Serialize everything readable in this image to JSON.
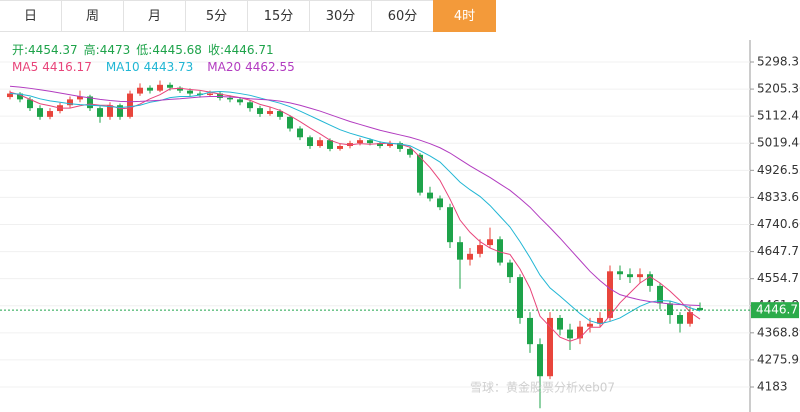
{
  "tabs": [
    "日",
    "周",
    "月",
    "5分",
    "15分",
    "30分",
    "60分",
    "4时"
  ],
  "active_tab": 7,
  "watermark": "雪球：黄金股票分析xeb07",
  "chart_data": {
    "type": "candlestick",
    "header": [
      {
        "label": "开:",
        "field": "open"
      },
      {
        "label": "高:",
        "field": "high"
      },
      {
        "label": "低:",
        "field": "low"
      },
      {
        "label": "收:",
        "field": "close"
      }
    ],
    "up_color": "#e8453c",
    "down_color": "#1ea34a",
    "open": [
      5178,
      5190,
      5170,
      5140,
      5110,
      5130,
      5150,
      5170,
      5180,
      5140,
      5110,
      5150,
      5110,
      5190,
      5210,
      5200,
      5220,
      5210,
      5200,
      5190,
      5185,
      5190,
      5175,
      5170,
      5160,
      5140,
      5120,
      5130,
      5110,
      5070,
      5040,
      5010,
      5030,
      5000,
      5010,
      5020,
      5030,
      5020,
      5010,
      5020,
      5000,
      4980,
      4850,
      4830,
      4800,
      4680,
      4620,
      4640,
      4670,
      4690,
      4610,
      4560,
      4420,
      4330,
      4220,
      4420,
      4380,
      4350,
      4390,
      4400,
      4420,
      4580,
      4570,
      4560,
      4570,
      4530,
      4470,
      4430,
      4400,
      4454.37
    ],
    "high": [
      5200,
      5195,
      5178,
      5150,
      5140,
      5158,
      5180,
      5200,
      5186,
      5146,
      5160,
      5156,
      5200,
      5225,
      5218,
      5235,
      5228,
      5215,
      5208,
      5198,
      5200,
      5196,
      5184,
      5178,
      5166,
      5148,
      5142,
      5136,
      5116,
      5078,
      5046,
      5040,
      5036,
      5018,
      5028,
      5038,
      5036,
      5026,
      5028,
      5026,
      5008,
      4986,
      4870,
      4840,
      4812,
      4700,
      4660,
      4690,
      4730,
      4700,
      4620,
      4570,
      4440,
      4350,
      4440,
      4430,
      4400,
      4410,
      4420,
      4440,
      4600,
      4600,
      4590,
      4590,
      4580,
      4540,
      4480,
      4440,
      4460,
      4473.0
    ],
    "low": [
      5170,
      5160,
      5130,
      5100,
      5102,
      5122,
      5142,
      5160,
      5130,
      5090,
      5100,
      5100,
      5104,
      5182,
      5190,
      5195,
      5200,
      5192,
      5182,
      5176,
      5178,
      5166,
      5160,
      5150,
      5128,
      5110,
      5114,
      5100,
      5060,
      5030,
      5000,
      5004,
      4992,
      4994,
      5002,
      5012,
      5012,
      5002,
      5004,
      4990,
      4970,
      4840,
      4820,
      4790,
      4660,
      4520,
      4600,
      4628,
      4660,
      4600,
      4540,
      4400,
      4300,
      4110,
      4210,
      4360,
      4310,
      4330,
      4370,
      4390,
      4410,
      4550,
      4540,
      4540,
      4510,
      4450,
      4400,
      4370,
      4390,
      4445.68
    ],
    "close": [
      5190,
      5170,
      5140,
      5110,
      5130,
      5150,
      5170,
      5180,
      5140,
      5110,
      5150,
      5110,
      5190,
      5210,
      5200,
      5220,
      5210,
      5200,
      5190,
      5185,
      5190,
      5175,
      5170,
      5160,
      5140,
      5120,
      5130,
      5110,
      5070,
      5040,
      5010,
      5030,
      5000,
      5010,
      5020,
      5030,
      5020,
      5010,
      5020,
      5000,
      4980,
      4850,
      4830,
      4800,
      4680,
      4620,
      4640,
      4670,
      4690,
      4610,
      4560,
      4420,
      4330,
      4220,
      4420,
      4380,
      4350,
      4390,
      4400,
      4420,
      4580,
      4570,
      4560,
      4570,
      4530,
      4470,
      4430,
      4400,
      4440,
      4446.71
    ],
    "series": [
      {
        "name": "MA5",
        "color": "#e8457a",
        "values": [
          5195,
          5185,
          5170,
          5155,
          5148,
          5140,
          5140,
          5148,
          5154,
          5150,
          5150,
          5138,
          5140,
          5154,
          5172,
          5186,
          5206,
          5208,
          5204,
          5201,
          5195,
          5188,
          5182,
          5176,
          5167,
          5153,
          5144,
          5132,
          5114,
          5094,
          5072,
          5052,
          5030,
          5018,
          5014,
          5018,
          5016,
          5018,
          5020,
          5016,
          5006,
          4972,
          4936,
          4892,
          4828,
          4756,
          4714,
          4682,
          4660,
          4646,
          4638,
          4588,
          4522,
          4426,
          4390,
          4354,
          4340,
          4352,
          4388,
          4388,
          4428,
          4472,
          4506,
          4540,
          4562,
          4540,
          4512,
          4480,
          4440,
          4416.17
        ]
      },
      {
        "name": "MA10",
        "color": "#21b6d4",
        "values": [
          5190,
          5188,
          5182,
          5172,
          5165,
          5160,
          5155,
          5152,
          5150,
          5148,
          5145,
          5142,
          5145,
          5150,
          5160,
          5166,
          5176,
          5180,
          5180,
          5185,
          5195,
          5197,
          5195,
          5190,
          5184,
          5175,
          5166,
          5157,
          5145,
          5130,
          5114,
          5098,
          5082,
          5066,
          5054,
          5044,
          5034,
          5024,
          5019,
          5017,
          5011,
          4994,
          4976,
          4955,
          4921,
          4886,
          4860,
          4837,
          4806,
          4769,
          4732,
          4682,
          4627,
          4567,
          4523,
          4495,
          4465,
          4435,
          4410,
          4400,
          4408,
          4420,
          4440,
          4460,
          4474,
          4480,
          4478,
          4468,
          4455,
          4443.73
        ]
      },
      {
        "name": "MA20",
        "color": "#b23cc0",
        "values": [
          5215,
          5212,
          5208,
          5203,
          5198,
          5192,
          5186,
          5180,
          5175,
          5170,
          5166,
          5163,
          5162,
          5163,
          5165,
          5167,
          5170,
          5172,
          5175,
          5178,
          5180,
          5180,
          5178,
          5176,
          5172,
          5170,
          5168,
          5164,
          5158,
          5150,
          5140,
          5130,
          5118,
          5106,
          5094,
          5084,
          5074,
          5064,
          5056,
          5048,
          5040,
          5030,
          5018,
          5004,
          4986,
          4964,
          4942,
          4922,
          4902,
          4880,
          4858,
          4830,
          4800,
          4764,
          4730,
          4694,
          4656,
          4618,
          4580,
          4548,
          4520,
          4500,
          4490,
          4482,
          4476,
          4472,
          4468,
          4466,
          4464,
          4462.55
        ]
      }
    ],
    "ylim": [
      4097.2,
      5373.8
    ],
    "yticks": [
      5298.31,
      5205.36,
      5112.42,
      5019.48,
      4926.55,
      4833.6,
      4740.66,
      4647.71,
      4554.77,
      4461.83,
      4368.89,
      4275.95,
      4183.0
    ],
    "grid": true
  }
}
